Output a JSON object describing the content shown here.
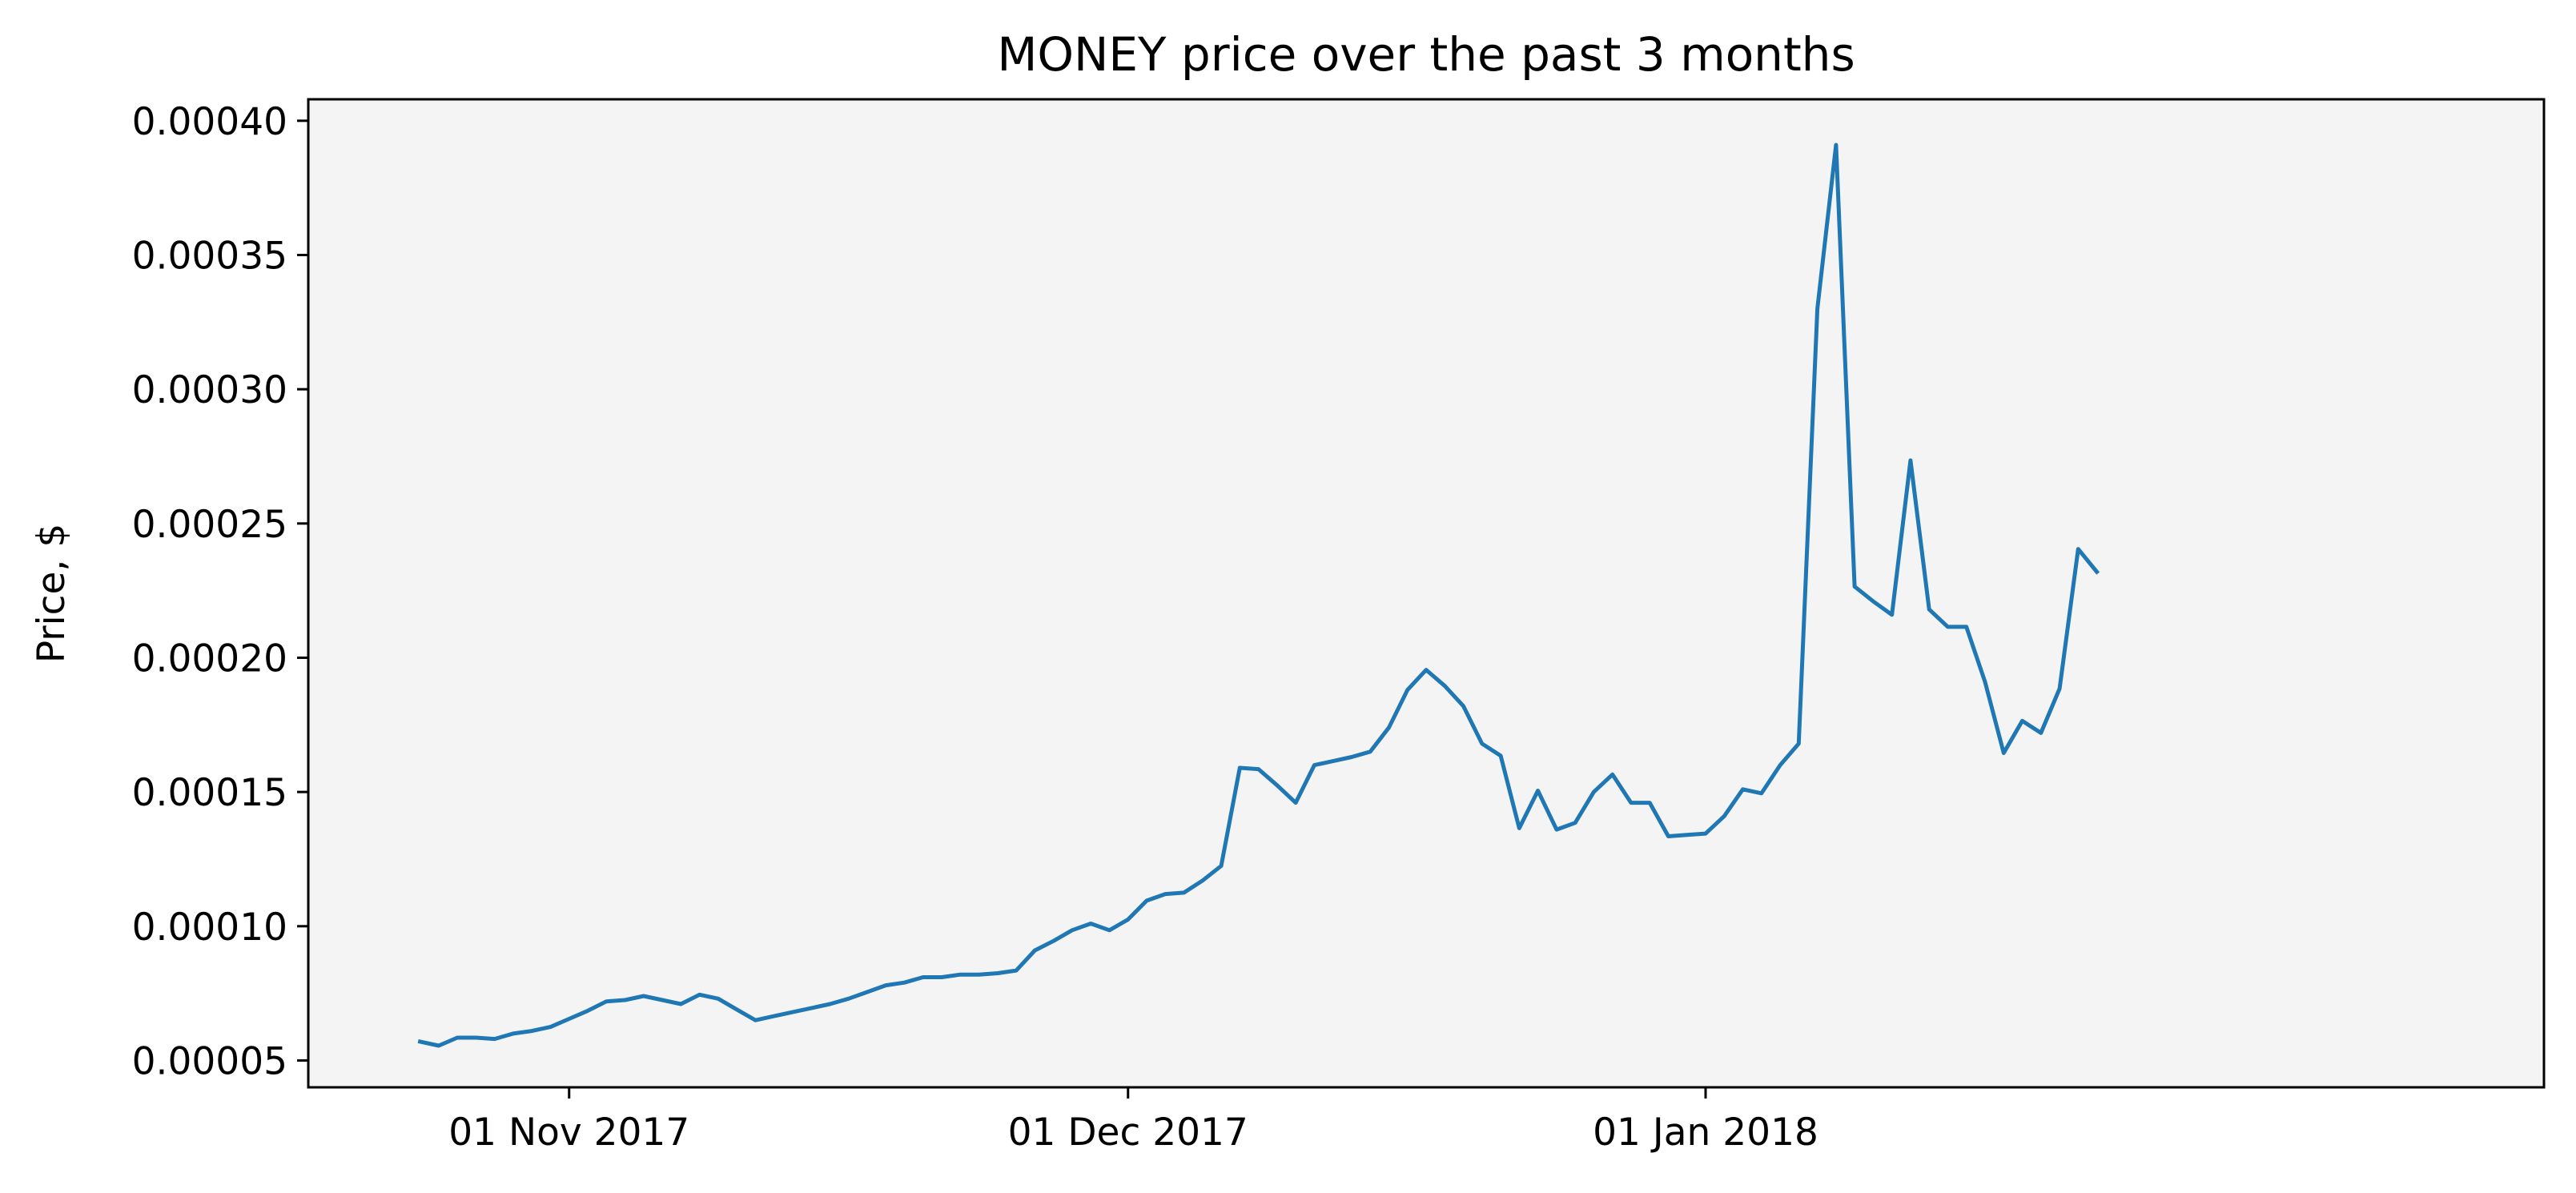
{
  "chart_data": {
    "type": "line",
    "title": "MONEY price over the past 3 months",
    "xlabel": "",
    "ylabel": "Price, $",
    "grid": false,
    "legend": "none",
    "colors": {
      "line": "#1f77b4",
      "plot_background": "#f4f4f4",
      "frame": "#000000"
    },
    "xlim": [
      "2017-10-18",
      "2018-02-15"
    ],
    "ylim": [
      4e-05,
      0.000408
    ],
    "x_ticks": [
      {
        "date": "2017-11-01",
        "label": "01 Nov 2017"
      },
      {
        "date": "2017-12-01",
        "label": "01 Dec 2017"
      },
      {
        "date": "2018-01-01",
        "label": "01 Jan 2018"
      }
    ],
    "y_ticks": [
      {
        "value": 5e-05,
        "label": "0.00005"
      },
      {
        "value": 0.0001,
        "label": "0.00010"
      },
      {
        "value": 0.00015,
        "label": "0.00015"
      },
      {
        "value": 0.0002,
        "label": "0.00020"
      },
      {
        "value": 0.00025,
        "label": "0.00025"
      },
      {
        "value": 0.0003,
        "label": "0.00030"
      },
      {
        "value": 0.00035,
        "label": "0.00035"
      },
      {
        "value": 0.0004,
        "label": "0.00040"
      }
    ],
    "series": [
      {
        "name": "",
        "points": [
          [
            "2017-10-24",
            5.7e-05
          ],
          [
            "2017-10-25",
            5.55e-05
          ],
          [
            "2017-10-26",
            5.85e-05
          ],
          [
            "2017-10-27",
            5.85e-05
          ],
          [
            "2017-10-28",
            5.8e-05
          ],
          [
            "2017-10-29",
            6e-05
          ],
          [
            "2017-10-30",
            6.1e-05
          ],
          [
            "2017-10-31",
            6.25e-05
          ],
          [
            "2017-11-01",
            6.55e-05
          ],
          [
            "2017-11-02",
            6.85e-05
          ],
          [
            "2017-11-03",
            7.2e-05
          ],
          [
            "2017-11-04",
            7.25e-05
          ],
          [
            "2017-11-05",
            7.4e-05
          ],
          [
            "2017-11-06",
            7.25e-05
          ],
          [
            "2017-11-07",
            7.1e-05
          ],
          [
            "2017-11-08",
            7.45e-05
          ],
          [
            "2017-11-09",
            7.3e-05
          ],
          [
            "2017-11-10",
            6.9e-05
          ],
          [
            "2017-11-11",
            6.5e-05
          ],
          [
            "2017-11-12",
            6.65e-05
          ],
          [
            "2017-11-13",
            6.8e-05
          ],
          [
            "2017-11-14",
            6.95e-05
          ],
          [
            "2017-11-15",
            7.1e-05
          ],
          [
            "2017-11-16",
            7.3e-05
          ],
          [
            "2017-11-17",
            7.55e-05
          ],
          [
            "2017-11-18",
            7.8e-05
          ],
          [
            "2017-11-19",
            7.9e-05
          ],
          [
            "2017-11-20",
            8.1e-05
          ],
          [
            "2017-11-21",
            8.1e-05
          ],
          [
            "2017-11-22",
            8.2e-05
          ],
          [
            "2017-11-23",
            8.2e-05
          ],
          [
            "2017-11-24",
            8.25e-05
          ],
          [
            "2017-11-25",
            8.35e-05
          ],
          [
            "2017-11-26",
            9.1e-05
          ],
          [
            "2017-11-27",
            9.45e-05
          ],
          [
            "2017-11-28",
            9.85e-05
          ],
          [
            "2017-11-29",
            0.000101
          ],
          [
            "2017-11-30",
            9.85e-05
          ],
          [
            "2017-12-01",
            0.0001025
          ],
          [
            "2017-12-02",
            0.0001095
          ],
          [
            "2017-12-03",
            0.000112
          ],
          [
            "2017-12-04",
            0.0001125
          ],
          [
            "2017-12-05",
            0.000117
          ],
          [
            "2017-12-06",
            0.0001225
          ],
          [
            "2017-12-07",
            0.000159
          ],
          [
            "2017-12-08",
            0.0001585
          ],
          [
            "2017-12-09",
            0.0001525
          ],
          [
            "2017-12-10",
            0.000146
          ],
          [
            "2017-12-11",
            0.00016
          ],
          [
            "2017-12-12",
            0.0001615
          ],
          [
            "2017-12-13",
            0.000163
          ],
          [
            "2017-12-14",
            0.000165
          ],
          [
            "2017-12-15",
            0.000174
          ],
          [
            "2017-12-16",
            0.000188
          ],
          [
            "2017-12-17",
            0.0001955
          ],
          [
            "2017-12-18",
            0.0001895
          ],
          [
            "2017-12-19",
            0.000182
          ],
          [
            "2017-12-20",
            0.000168
          ],
          [
            "2017-12-21",
            0.0001635
          ],
          [
            "2017-12-22",
            0.0001365
          ],
          [
            "2017-12-23",
            0.0001505
          ],
          [
            "2017-12-24",
            0.000136
          ],
          [
            "2017-12-25",
            0.0001385
          ],
          [
            "2017-12-26",
            0.00015
          ],
          [
            "2017-12-27",
            0.0001565
          ],
          [
            "2017-12-28",
            0.000146
          ],
          [
            "2017-12-29",
            0.000146
          ],
          [
            "2017-12-30",
            0.0001335
          ],
          [
            "2017-12-31",
            0.000134
          ],
          [
            "2018-01-01",
            0.0001345
          ],
          [
            "2018-01-02",
            0.000141
          ],
          [
            "2018-01-03",
            0.000151
          ],
          [
            "2018-01-04",
            0.0001495
          ],
          [
            "2018-01-05",
            0.00016
          ],
          [
            "2018-01-06",
            0.000168
          ],
          [
            "2018-01-07",
            0.00033
          ],
          [
            "2018-01-08",
            0.000391
          ],
          [
            "2018-01-09",
            0.0002265
          ],
          [
            "2018-01-10",
            0.000221
          ],
          [
            "2018-01-11",
            0.000216
          ],
          [
            "2018-01-12",
            0.0002735
          ],
          [
            "2018-01-13",
            0.000218
          ],
          [
            "2018-01-14",
            0.0002115
          ],
          [
            "2018-01-15",
            0.0002115
          ],
          [
            "2018-01-16",
            0.000191
          ],
          [
            "2018-01-17",
            0.0001645
          ],
          [
            "2018-01-18",
            0.0001765
          ],
          [
            "2018-01-19",
            0.000172
          ],
          [
            "2018-01-20",
            0.0001885
          ],
          [
            "2018-01-21",
            0.0002405
          ],
          [
            "2018-01-22",
            0.000232
          ]
        ]
      }
    ]
  }
}
